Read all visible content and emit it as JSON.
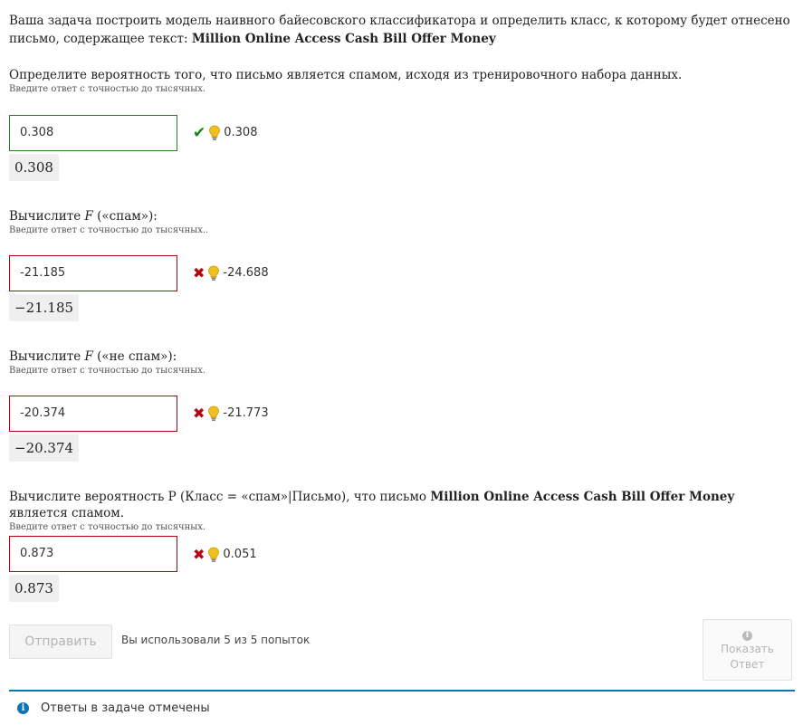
{
  "intro": {
    "text_before": "Ваша задача построить модель наивного байесовского классификатора и определить класс, к которому будет отнесено письмо, содержащее текст: ",
    "email_text": "Million Online Access Cash Bill Offer Money"
  },
  "q1": {
    "question": "Определите вероятность того, что письмо является спамом, исходя из тренировочного набора данных.",
    "hint": "Введите ответ с точностью до тысячных.",
    "value": "0.308",
    "status": "correct",
    "shown_answer": "0.308",
    "preview": "0.308"
  },
  "q2": {
    "prefix": "Вычислите ",
    "math": "F",
    "suffix": " («спам»):",
    "hint": "Введите ответ с точностью до тысячных..",
    "value": "-21.185",
    "status": "incorrect",
    "shown_answer": "-24.688",
    "preview": "−21.185"
  },
  "q3": {
    "prefix": "Вычислите ",
    "math": "F",
    "suffix": " («не спам»):",
    "hint": "Введите ответ с точностью до тысячных.",
    "value": "-20.374",
    "status": "incorrect",
    "shown_answer": "-21.773",
    "preview": "−20.374"
  },
  "q4": {
    "prefix": "Вычислите вероятность P ",
    "math": "(Класс = «спам»|Письмо)",
    "middle": ", что письмо ",
    "email_text": "Million Online Access Cash Bill Offer Money",
    "suffix": " является спамом.",
    "hint": "Введите ответ с точностью до тысячных.",
    "value": "0.873",
    "status": "incorrect",
    "shown_answer": "0.051",
    "preview": "0.873"
  },
  "actions": {
    "submit_label": "Отправить",
    "attempts_text": "Вы использовали 5 из 5 попыток",
    "show_answer_line1": "Показать",
    "show_answer_line2": "Ответ"
  },
  "notice": {
    "text": "Ответы в задаче отмечены"
  },
  "colors": {
    "correct": "#118811",
    "incorrect": "#b20610",
    "accent": "#0b75b5",
    "bulb": "#f0c020"
  }
}
